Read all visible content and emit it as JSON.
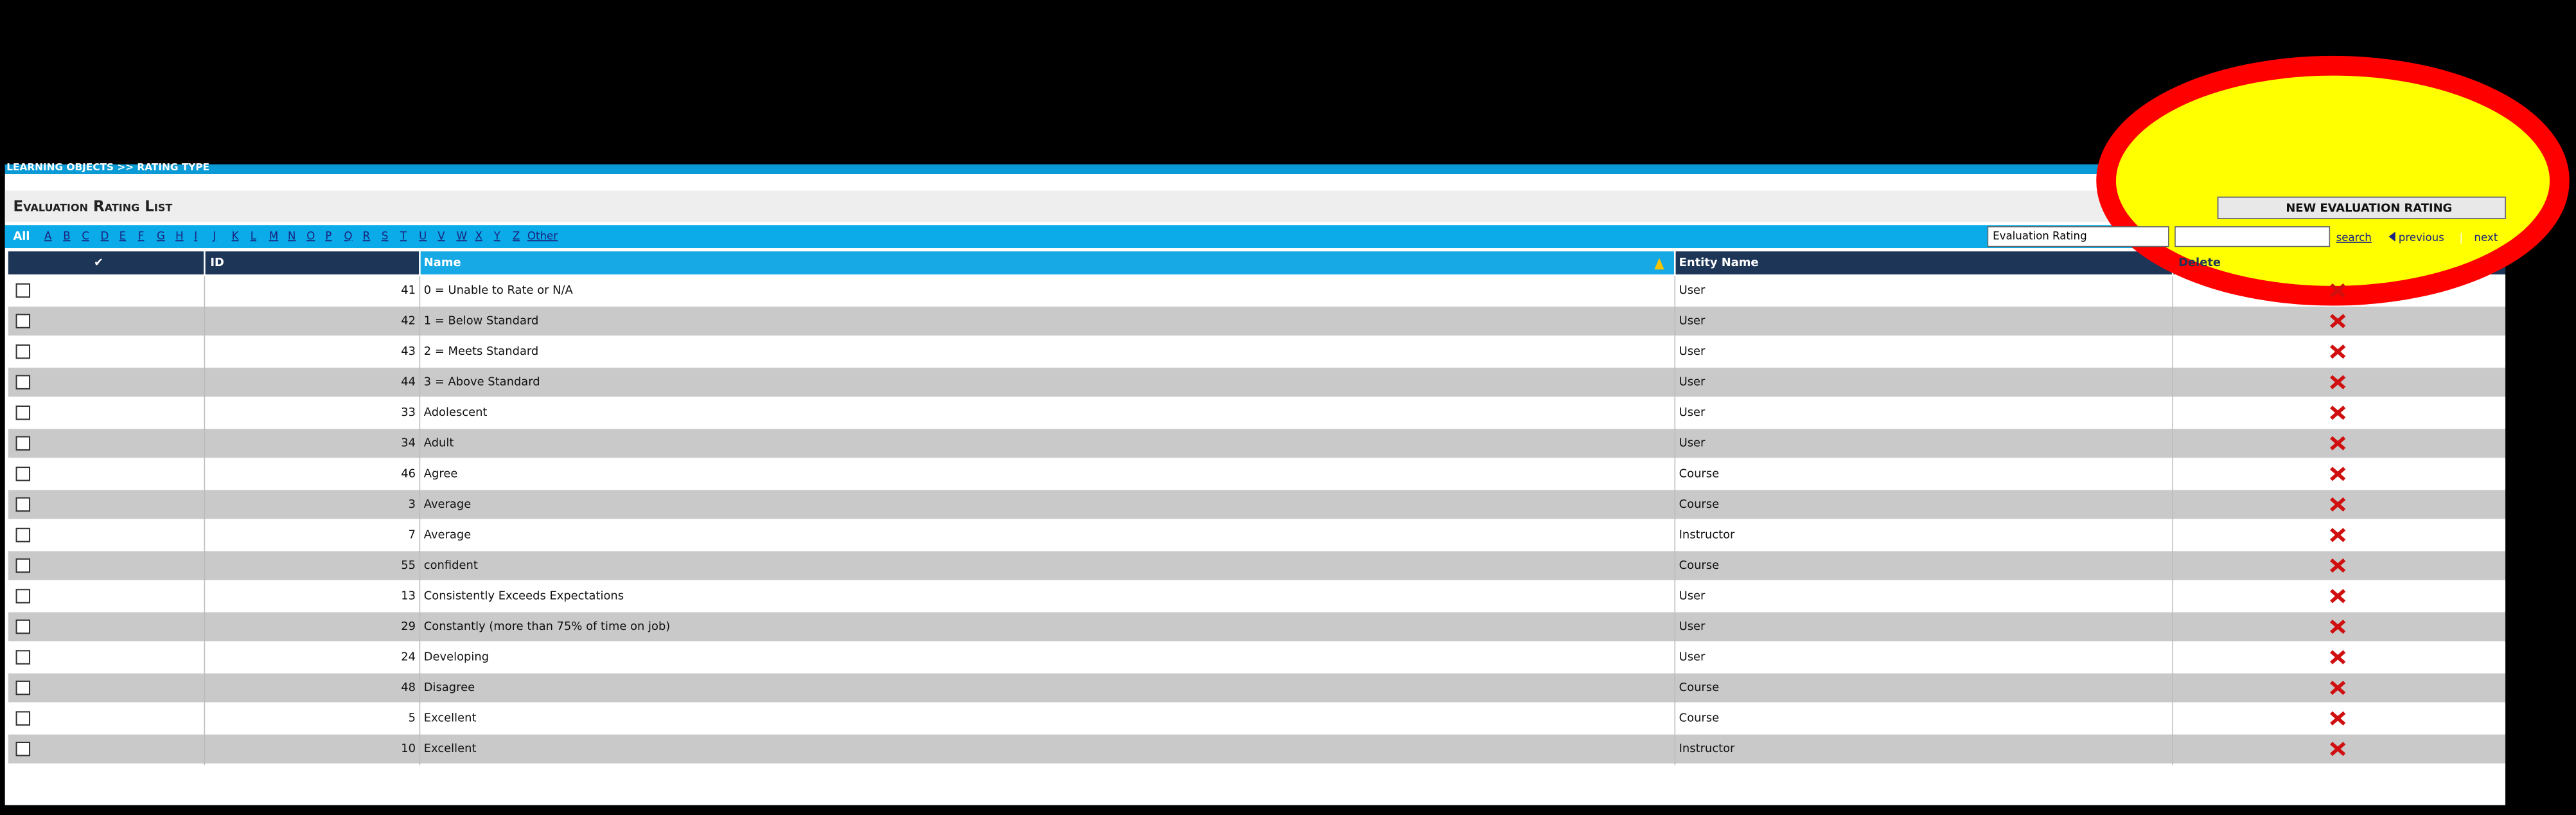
{
  "breadcrumb": "LEARNING OBJECTS >> RATING TYPE",
  "title": "Evaluation Rating List",
  "new_button": "NEW EVALUATION RATING",
  "letters": [
    "All",
    "A",
    "B",
    "C",
    "D",
    "E",
    "F",
    "G",
    "H",
    "I",
    "J",
    "K",
    "L",
    "M",
    "N",
    "O",
    "P",
    "Q",
    "R",
    "S",
    "T",
    "U",
    "V",
    "W",
    "X",
    "Y",
    "Z",
    "Other"
  ],
  "filter_select": "Evaluation Rating",
  "search": "search",
  "previous": "previous",
  "separator": "|",
  "next": "next",
  "table": {
    "headers": [
      "✔",
      "ID",
      "Name",
      "Entity Name",
      "Delete"
    ],
    "rows": [
      [
        "41",
        "0 = Unable to Rate or N/A",
        "User"
      ],
      [
        "42",
        "1 = Below Standard",
        "User"
      ],
      [
        "43",
        "2 = Meets Standard",
        "User"
      ],
      [
        "44",
        "3 = Above Standard",
        "User"
      ],
      [
        "33",
        "Adolescent",
        "User"
      ],
      [
        "34",
        "Adult",
        "User"
      ],
      [
        "46",
        "Agree",
        "Course"
      ],
      [
        "3",
        "Average",
        "Course"
      ],
      [
        "7",
        "Average",
        "Instructor"
      ],
      [
        "55",
        "confident",
        "Course"
      ],
      [
        "13",
        "Consistently Exceeds Expectations",
        "User"
      ],
      [
        "29",
        "Constantly (more than 75% of time on job)",
        "User"
      ],
      [
        "24",
        "Developing",
        "User"
      ],
      [
        "48",
        "Disagree",
        "Course"
      ],
      [
        "5",
        "Excellent",
        "Course"
      ],
      [
        "10",
        "Excellent",
        "Instructor"
      ]
    ]
  }
}
